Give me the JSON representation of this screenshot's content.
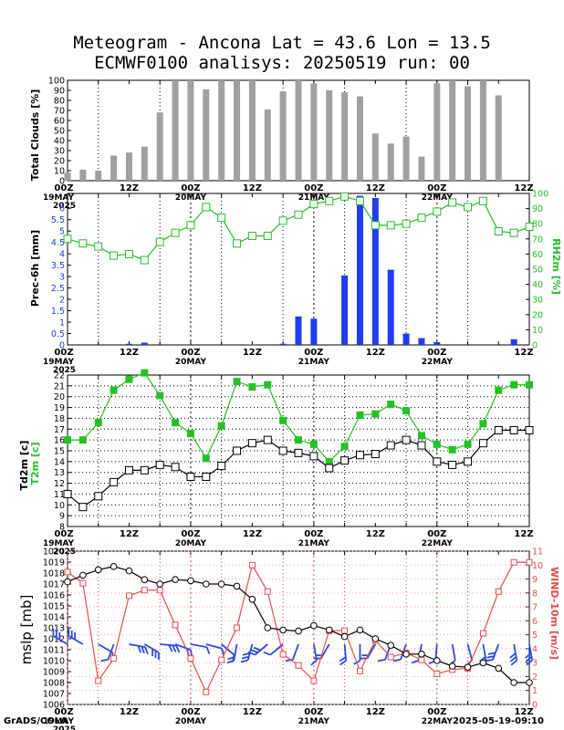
{
  "header": {
    "title_line1": "Meteogram - Ancona Lat = 43.6 Lon = 13.5",
    "title_line2": "ECMWF0100 analisys: 20250519 run: 00"
  },
  "footer": {
    "credit": "GrADS/COLA",
    "timestamp": "2025-05-19-09:10"
  },
  "colors": {
    "clouds": "#a0a0a0",
    "prec": "#1e3cf0",
    "rh": "#22c422",
    "t2m": "#22c422",
    "td2m": "#000000",
    "mslp": "#000000",
    "wind": "#f04a4a",
    "barbs": "#2a4ae8",
    "grid": "#000000"
  },
  "time_axis": {
    "tick_labels": [
      "00Z",
      "12Z",
      "00Z",
      "12Z",
      "00Z",
      "12Z",
      "00Z",
      "12Z"
    ],
    "date_labels": [
      "19MAY",
      "20MAY",
      "21MAY",
      "22MAY"
    ],
    "year_label": "2025",
    "times_h": [
      0,
      6,
      12,
      18,
      24,
      30,
      36,
      42,
      48,
      54,
      60,
      66,
      72,
      78,
      84,
      90
    ]
  },
  "chart_data": [
    {
      "type": "bar",
      "panel": "clouds",
      "ylabel": "Total Clouds [%]",
      "ylim": [
        0,
        100
      ],
      "yticks": [
        0,
        10,
        20,
        30,
        40,
        50,
        60,
        70,
        80,
        90,
        100
      ],
      "x_hours": [
        0,
        3,
        6,
        9,
        12,
        15,
        18,
        21,
        24,
        27,
        30,
        33,
        36,
        39,
        42,
        45,
        48,
        51,
        54,
        57,
        60,
        63,
        66,
        69,
        72,
        75,
        78,
        81,
        84,
        87,
        90
      ],
      "values": [
        8,
        11,
        10,
        25,
        28,
        34,
        68,
        100,
        100,
        91,
        100,
        100,
        100,
        71,
        89,
        100,
        97,
        90,
        88,
        84,
        47,
        37,
        44,
        24,
        97,
        100,
        94,
        100,
        85,
        0,
        0
      ]
    },
    {
      "type": "bar",
      "panel": "precipitation",
      "ylabel": "Prec-6h [mm]",
      "ylim": [
        0,
        6.5
      ],
      "yticks": [
        0,
        0.5,
        1,
        1.5,
        2,
        2.5,
        3,
        3.5,
        4,
        4.5,
        5,
        5.5,
        6
      ],
      "x_hours": [
        0,
        3,
        6,
        9,
        12,
        15,
        18,
        21,
        24,
        27,
        30,
        33,
        36,
        39,
        42,
        45,
        48,
        51,
        54,
        57,
        60,
        63,
        66,
        69,
        72,
        75,
        78,
        81,
        84,
        87,
        90
      ],
      "values": [
        0,
        0,
        0,
        0,
        0.05,
        0.1,
        0,
        0,
        0,
        0,
        0,
        0,
        0.02,
        0,
        0.05,
        1.25,
        1.15,
        0,
        3.05,
        6.55,
        6.45,
        3.3,
        0.5,
        0.3,
        0.12,
        0,
        0,
        0,
        0,
        0.25,
        0
      ]
    },
    {
      "type": "line",
      "panel": "precipitation",
      "ylabel": "RH2m [%]",
      "ylim": [
        0,
        100
      ],
      "yticks": [
        0,
        10,
        20,
        30,
        40,
        50,
        60,
        70,
        80,
        90,
        100
      ],
      "x_hours": [
        0,
        3,
        6,
        9,
        12,
        15,
        18,
        21,
        24,
        27,
        30,
        33,
        36,
        39,
        42,
        45,
        48,
        51,
        54,
        57,
        60,
        63,
        66,
        69,
        72,
        75,
        78,
        81,
        84,
        87,
        90
      ],
      "values": [
        70,
        67,
        65,
        59,
        60,
        56,
        68,
        74,
        79,
        91,
        84,
        67,
        72,
        72,
        82,
        86,
        93,
        95,
        98,
        95,
        79,
        79,
        80,
        84,
        88,
        94,
        91,
        95,
        75,
        74,
        78
      ]
    },
    {
      "type": "line",
      "panel": "temperature",
      "ylabel": "T2m [c]",
      "ylim": [
        8,
        22
      ],
      "yticks": [
        8,
        9,
        10,
        11,
        12,
        13,
        14,
        15,
        16,
        17,
        18,
        19,
        20,
        21,
        22
      ],
      "x_hours": [
        0,
        3,
        6,
        9,
        12,
        15,
        18,
        21,
        24,
        27,
        30,
        33,
        36,
        39,
        42,
        45,
        48,
        51,
        54,
        57,
        60,
        63,
        66,
        69,
        72,
        75,
        78,
        81,
        84,
        87,
        90
      ],
      "values": [
        16,
        16,
        17.6,
        20.6,
        21.6,
        22.2,
        20.1,
        17.6,
        16.6,
        14.3,
        17.3,
        21.4,
        20.9,
        21.1,
        17.8,
        16,
        15.6,
        14,
        15.4,
        18.3,
        18.4,
        19.3,
        18.7,
        16.4,
        15.6,
        15.1,
        15.6,
        17.5,
        20.6,
        21.1,
        21.1
      ]
    },
    {
      "type": "line",
      "panel": "temperature",
      "ylabel": "Td2m [c]",
      "ylim": [
        8,
        22
      ],
      "x_hours": [
        0,
        3,
        6,
        9,
        12,
        15,
        18,
        21,
        24,
        27,
        30,
        33,
        36,
        39,
        42,
        45,
        48,
        51,
        54,
        57,
        60,
        63,
        66,
        69,
        72,
        75,
        78,
        81,
        84,
        87,
        90
      ],
      "values": [
        11,
        9.8,
        10.8,
        12.1,
        13.2,
        13.2,
        13.7,
        13.5,
        12.6,
        12.6,
        13.6,
        15,
        15.7,
        16,
        15,
        14.8,
        14.5,
        13.4,
        14.1,
        14.6,
        14.7,
        15.5,
        16,
        15.5,
        14,
        13.7,
        14,
        15.7,
        16.9,
        16.9,
        16.9
      ]
    },
    {
      "type": "line",
      "panel": "pressure-wind",
      "ylabel": "mslp [mb]",
      "ylim": [
        1006,
        1020
      ],
      "yticks": [
        1006,
        1007,
        1008,
        1009,
        1010,
        1011,
        1012,
        1013,
        1014,
        1015,
        1016,
        1017,
        1018,
        1019,
        1020
      ],
      "x_hours": [
        0,
        3,
        6,
        9,
        12,
        15,
        18,
        21,
        24,
        27,
        30,
        33,
        36,
        39,
        42,
        45,
        48,
        51,
        54,
        57,
        60,
        63,
        66,
        69,
        72,
        75,
        78,
        81,
        84,
        87,
        90
      ],
      "values": [
        1017.2,
        1017.8,
        1018.3,
        1018.6,
        1018.2,
        1017.4,
        1017,
        1017.4,
        1017.3,
        1017,
        1017,
        1016.8,
        1015.6,
        1013,
        1012.8,
        1012.7,
        1013.2,
        1012.8,
        1012.2,
        1012.8,
        1012,
        1011.4,
        1010.6,
        1010.6,
        1010,
        1009.5,
        1009.4,
        1009.8,
        1009.3,
        1008,
        1008
      ]
    },
    {
      "type": "line",
      "panel": "pressure-wind",
      "ylabel": "WIND-10m [m/s]",
      "ylim": [
        0,
        11
      ],
      "yticks": [
        0,
        1,
        2,
        3,
        4,
        5,
        6,
        7,
        8,
        9,
        10,
        11
      ],
      "x_hours": [
        0,
        3,
        6,
        9,
        12,
        15,
        18,
        21,
        24,
        27,
        30,
        33,
        36,
        39,
        42,
        45,
        48,
        51,
        54,
        57,
        60,
        63,
        66,
        69,
        72,
        75,
        78,
        81,
        84,
        87,
        90
      ],
      "values": [
        9.5,
        8.7,
        1.7,
        3.3,
        7.8,
        8.2,
        8.2,
        5.7,
        3.3,
        0.9,
        3.2,
        5.5,
        10,
        8.1,
        3.6,
        2.8,
        1.7,
        5.3,
        5.3,
        2.4,
        4.6,
        3.4,
        3.7,
        3.2,
        2.2,
        2.5,
        2.6,
        5.1,
        8.1,
        10.2,
        10.2
      ]
    }
  ],
  "panels": {
    "clouds": {
      "ylabel": "Total Clouds [%]"
    },
    "precipitation": {
      "ylabel_left": "Prec-6h [mm]",
      "ylabel_right": "RH2m [%]"
    },
    "temperature": {
      "ylabel_td": "Td2m [c]",
      "ylabel_t": "T2m [c]"
    },
    "pressure_wind": {
      "ylabel_left": "mslp [mb]",
      "ylabel_right": "WIND-10m [m/s]"
    }
  }
}
